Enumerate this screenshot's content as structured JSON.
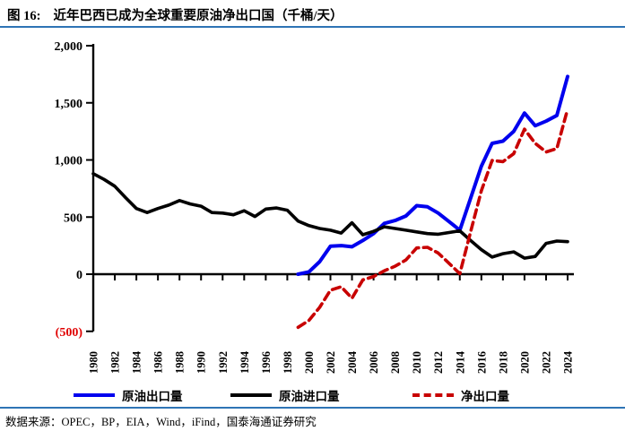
{
  "title": {
    "prefix": "图 16:",
    "text": "近年巴西已成为全球重要原油净出口国（千桶/天）"
  },
  "source": "数据来源：OPEC，BP，EIA，Wind，iFind，国泰海通证券研究",
  "colors": {
    "accent_rule": "#2e74b5",
    "export_line": "#0000ee",
    "import_line": "#000000",
    "net_line": "#c80000",
    "negative_label": "#e00000"
  },
  "legend": [
    {
      "label": "原油出口量",
      "color": "#0000ee",
      "style": "solid"
    },
    {
      "label": "原油进口量",
      "color": "#000000",
      "style": "solid"
    },
    {
      "label": "净出口量",
      "color": "#c80000",
      "style": "dashed"
    }
  ],
  "chart_data": {
    "type": "line",
    "title": "近年巴西已成为全球重要原油净出口国（千桶/天）",
    "xlabel": "",
    "ylabel": "千桶/天",
    "ylim": [
      -500,
      2000
    ],
    "grid": false,
    "legend_position": "bottom",
    "x": [
      1980,
      1981,
      1982,
      1983,
      1984,
      1985,
      1986,
      1987,
      1988,
      1989,
      1990,
      1991,
      1992,
      1993,
      1994,
      1995,
      1996,
      1997,
      1998,
      1999,
      2000,
      2001,
      2002,
      2003,
      2004,
      2005,
      2006,
      2007,
      2008,
      2009,
      2010,
      2011,
      2012,
      2013,
      2014,
      2015,
      2016,
      2017,
      2018,
      2019,
      2020,
      2021,
      2022,
      2023,
      2024
    ],
    "x_tick_labels": [
      "1980",
      "1982",
      "1984",
      "1986",
      "1988",
      "1990",
      "1992",
      "1994",
      "1996",
      "1998",
      "2000",
      "2002",
      "2004",
      "2006",
      "2008",
      "2010",
      "2012",
      "2014",
      "2016",
      "2018",
      "2020",
      "2022",
      "2024"
    ],
    "y_ticks": {
      "values": [
        2000,
        1500,
        1000,
        500,
        0,
        -500
      ],
      "labels": [
        "2,000",
        "1,500",
        "1,000",
        "500",
        "0",
        "(500)"
      ]
    },
    "series": [
      {
        "id": "export",
        "name": "原油出口量",
        "color": "#0000ee",
        "dash": false,
        "width": 4,
        "values": [
          null,
          null,
          null,
          null,
          null,
          null,
          null,
          null,
          null,
          null,
          null,
          null,
          null,
          null,
          null,
          null,
          null,
          null,
          null,
          0,
          20,
          110,
          245,
          250,
          240,
          295,
          355,
          445,
          470,
          510,
          600,
          590,
          535,
          460,
          385,
          665,
          945,
          1145,
          1165,
          1250,
          1410,
          1300,
          1340,
          1390,
          1730
        ]
      },
      {
        "id": "import",
        "name": "原油进口量",
        "color": "#000000",
        "dash": false,
        "width": 3.6,
        "values": [
          880,
          830,
          770,
          670,
          575,
          540,
          575,
          605,
          645,
          615,
          595,
          540,
          535,
          520,
          555,
          505,
          570,
          580,
          560,
          465,
          425,
          400,
          385,
          360,
          450,
          345,
          375,
          415,
          400,
          385,
          370,
          355,
          350,
          365,
          380,
          295,
          215,
          150,
          180,
          195,
          140,
          155,
          270,
          290,
          285
        ]
      },
      {
        "id": "net",
        "name": "净出口量",
        "color": "#c80000",
        "dash": true,
        "width": 3.6,
        "values": [
          null,
          null,
          null,
          null,
          null,
          null,
          null,
          null,
          null,
          null,
          null,
          null,
          null,
          null,
          null,
          null,
          null,
          null,
          null,
          -465,
          -405,
          -290,
          -140,
          -110,
          -210,
          -50,
          -20,
          30,
          70,
          125,
          230,
          235,
          185,
          95,
          5,
          370,
          730,
          995,
          985,
          1055,
          1270,
          1145,
          1070,
          1100,
          1445
        ]
      }
    ]
  }
}
